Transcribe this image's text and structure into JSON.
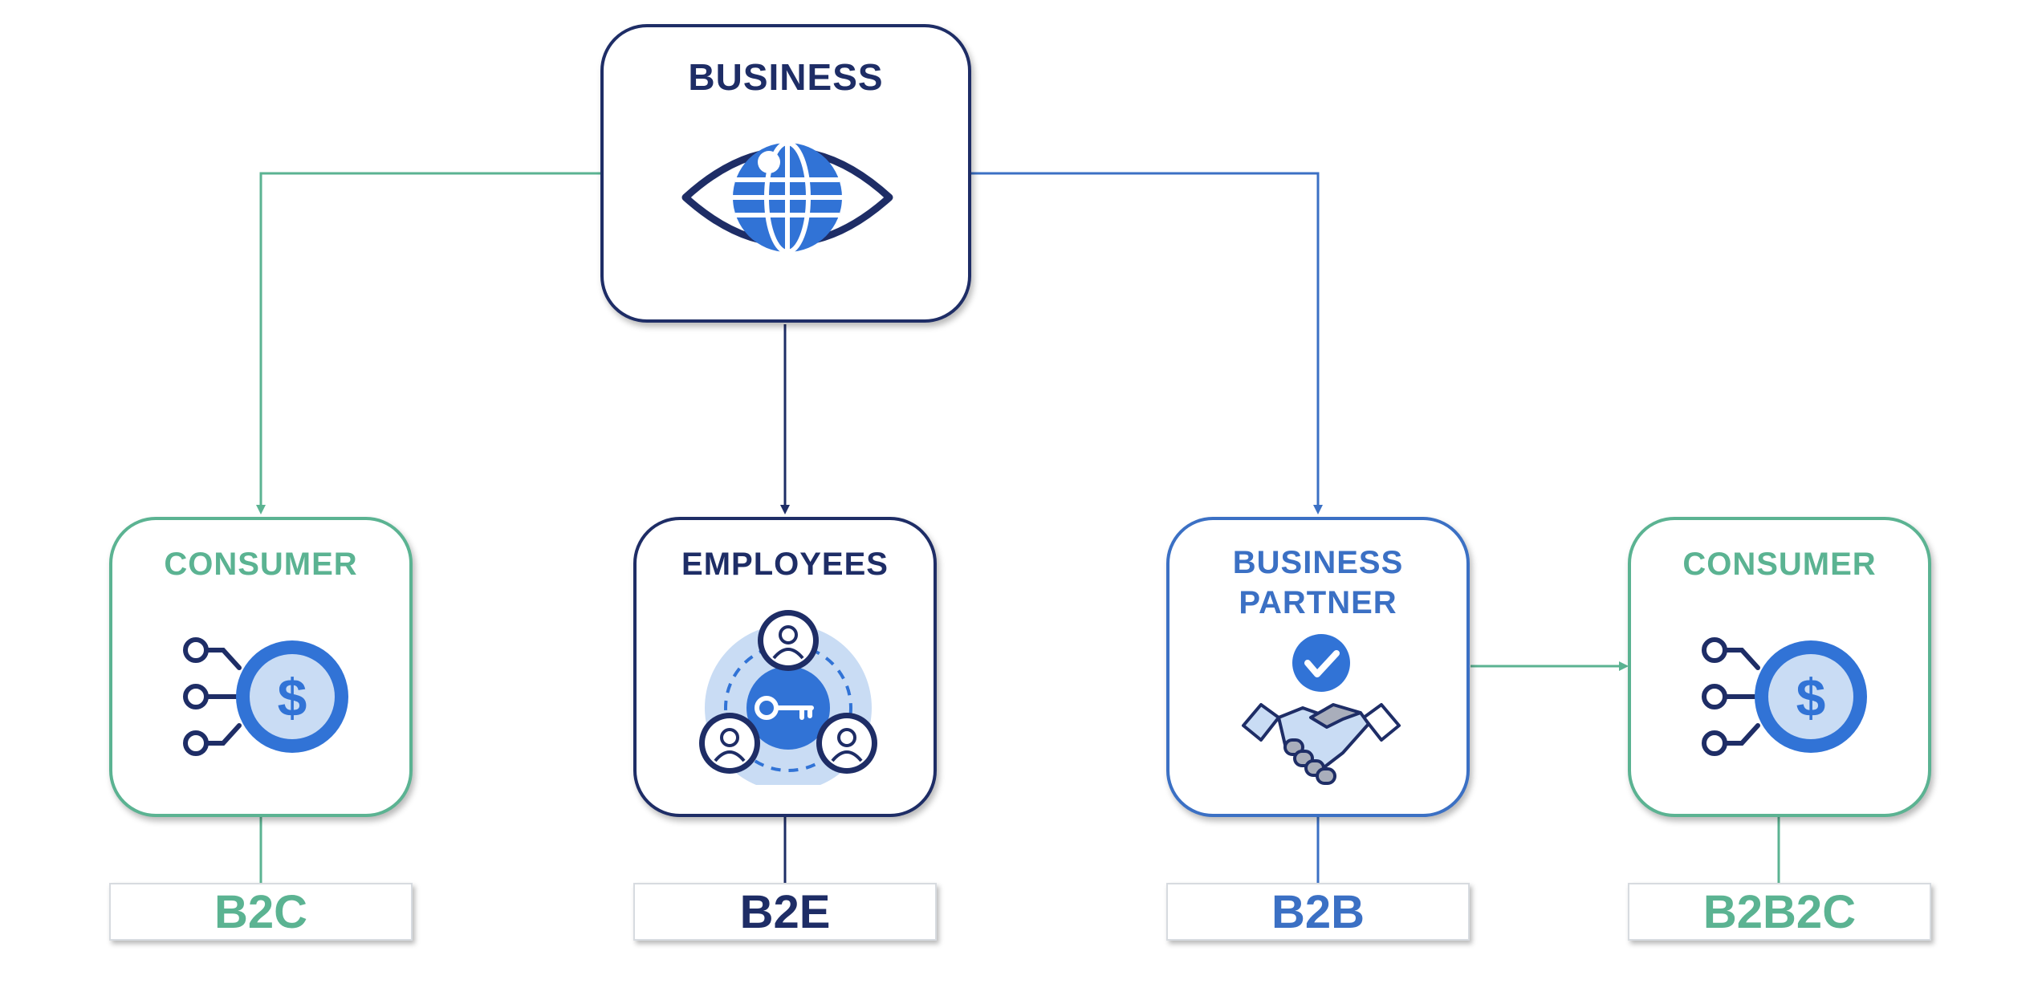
{
  "colors": {
    "green": "#5bb392",
    "navy": "#1e2d66",
    "blue": "#3b70c4",
    "light_blue": "#c9dcf4",
    "accent_blue": "#3173d6"
  },
  "business": {
    "title": "BUSINESS",
    "icon": "globe-eye-icon"
  },
  "models": [
    {
      "node_title": "CONSUMER",
      "icon": "connected-dollar-coin-icon",
      "tag": "B2C"
    },
    {
      "node_title": "EMPLOYEES",
      "icon": "people-key-icon",
      "tag": "B2E"
    },
    {
      "node_title": "BUSINESS\nPARTNER",
      "icon": "handshake-check-icon",
      "tag": "B2B"
    },
    {
      "node_title": "CONSUMER",
      "icon": "connected-dollar-coin-icon",
      "tag": "B2B2C"
    }
  ]
}
